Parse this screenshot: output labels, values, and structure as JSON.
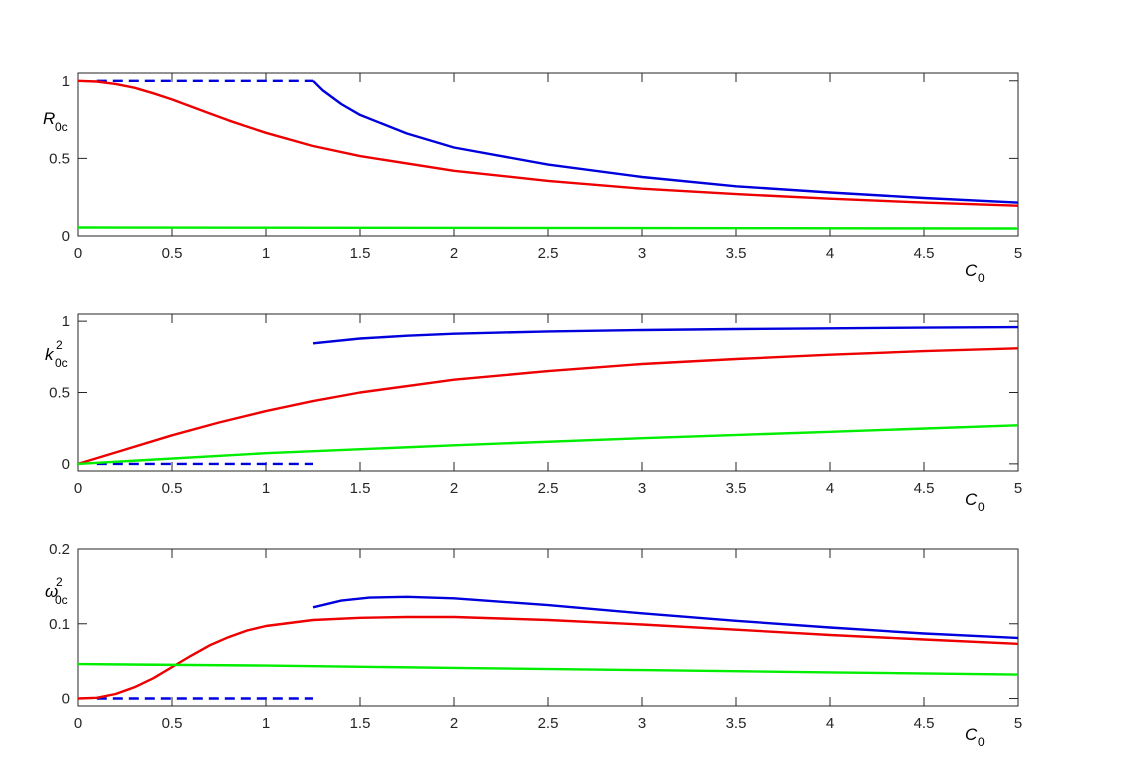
{
  "chart_data": [
    {
      "type": "line",
      "xlabel": "C",
      "xlabel_sub": "0",
      "ylabel": "R",
      "ylabel_sub": "0c",
      "ylabel_sup": "",
      "xlim": [
        0,
        5
      ],
      "ylim": [
        0,
        1.05
      ],
      "xticks": [
        0,
        0.5,
        1,
        1.5,
        2,
        2.5,
        3,
        3.5,
        4,
        4.5,
        5
      ],
      "xtick_labels": [
        "0",
        "0.5",
        "1",
        "1.5",
        "2",
        "2.5",
        "3",
        "3.5",
        "4",
        "4.5",
        "5"
      ],
      "yticks": [
        0,
        0.5,
        1
      ],
      "ytick_labels": [
        "0",
        "0.5",
        "1"
      ],
      "grid": false,
      "series": [
        {
          "color": "#0000dd",
          "style": "dashed",
          "x": [
            0.1,
            1.25
          ],
          "y": [
            1.0,
            1.0
          ]
        },
        {
          "color": "#0000dd",
          "style": "solid",
          "x": [
            1.25,
            1.3,
            1.4,
            1.5,
            1.75,
            2.0,
            2.5,
            3.0,
            3.5,
            4.0,
            4.5,
            5.0
          ],
          "y": [
            1.0,
            0.94,
            0.85,
            0.78,
            0.66,
            0.57,
            0.46,
            0.38,
            0.32,
            0.28,
            0.245,
            0.215
          ]
        },
        {
          "color": "#ee0000",
          "style": "solid",
          "x": [
            0,
            0.1,
            0.2,
            0.3,
            0.4,
            0.5,
            0.6,
            0.7,
            0.8,
            0.9,
            1.0,
            1.25,
            1.5,
            2.0,
            2.5,
            3.0,
            3.5,
            4.0,
            4.5,
            5.0
          ],
          "y": [
            1.0,
            0.995,
            0.98,
            0.955,
            0.92,
            0.88,
            0.835,
            0.79,
            0.745,
            0.705,
            0.665,
            0.58,
            0.515,
            0.42,
            0.355,
            0.305,
            0.27,
            0.24,
            0.215,
            0.195
          ]
        },
        {
          "color": "#00ee00",
          "style": "solid",
          "x": [
            0,
            5
          ],
          "y": [
            0.055,
            0.048
          ]
        }
      ]
    },
    {
      "type": "line",
      "xlabel": "C",
      "xlabel_sub": "0",
      "ylabel": "k",
      "ylabel_sub": "0c",
      "ylabel_sup": "2",
      "xlim": [
        0,
        5
      ],
      "ylim": [
        -0.05,
        1.05
      ],
      "xticks": [
        0,
        0.5,
        1,
        1.5,
        2,
        2.5,
        3,
        3.5,
        4,
        4.5,
        5
      ],
      "xtick_labels": [
        "0",
        "0.5",
        "1",
        "1.5",
        "2",
        "2.5",
        "3",
        "3.5",
        "4",
        "4.5",
        "5"
      ],
      "yticks": [
        0,
        0.5,
        1
      ],
      "ytick_labels": [
        "0",
        "0.5",
        "1"
      ],
      "grid": false,
      "series": [
        {
          "color": "#0000dd",
          "style": "dashed",
          "x": [
            0.1,
            1.25
          ],
          "y": [
            0.0,
            0.0
          ]
        },
        {
          "color": "#0000dd",
          "style": "solid",
          "x": [
            1.25,
            1.5,
            1.75,
            2.0,
            2.5,
            3.0,
            3.5,
            4.0,
            4.5,
            5.0
          ],
          "y": [
            0.845,
            0.878,
            0.898,
            0.912,
            0.928,
            0.938,
            0.945,
            0.95,
            0.955,
            0.958
          ]
        },
        {
          "color": "#ee0000",
          "style": "solid",
          "x": [
            0,
            0.25,
            0.5,
            0.75,
            1.0,
            1.25,
            1.5,
            2.0,
            2.5,
            3.0,
            3.5,
            4.0,
            4.5,
            5.0
          ],
          "y": [
            0.0,
            0.1,
            0.2,
            0.29,
            0.37,
            0.44,
            0.5,
            0.59,
            0.65,
            0.7,
            0.735,
            0.765,
            0.79,
            0.81
          ]
        },
        {
          "color": "#00ee00",
          "style": "solid",
          "x": [
            0,
            1.0,
            2.0,
            3.0,
            4.0,
            5.0
          ],
          "y": [
            0.0,
            0.075,
            0.13,
            0.18,
            0.225,
            0.27
          ]
        }
      ]
    },
    {
      "type": "line",
      "xlabel": "C",
      "xlabel_sub": "0",
      "ylabel": "ω",
      "ylabel_sub": "0c",
      "ylabel_sup": "2",
      "xlim": [
        0,
        5
      ],
      "ylim": [
        -0.01,
        0.2
      ],
      "xticks": [
        0,
        0.5,
        1,
        1.5,
        2,
        2.5,
        3,
        3.5,
        4,
        4.5,
        5
      ],
      "xtick_labels": [
        "0",
        "0.5",
        "1",
        "1.5",
        "2",
        "2.5",
        "3",
        "3.5",
        "4",
        "4.5",
        "5"
      ],
      "yticks": [
        0,
        0.1,
        0.2
      ],
      "ytick_labels": [
        "0",
        "0.1",
        "0.2"
      ],
      "grid": false,
      "series": [
        {
          "color": "#0000dd",
          "style": "dashed",
          "x": [
            0.1,
            1.25
          ],
          "y": [
            0.0,
            0.0
          ]
        },
        {
          "color": "#0000dd",
          "style": "solid",
          "x": [
            1.25,
            1.4,
            1.55,
            1.75,
            2.0,
            2.5,
            3.0,
            3.5,
            4.0,
            4.5,
            5.0
          ],
          "y": [
            0.122,
            0.131,
            0.135,
            0.136,
            0.134,
            0.125,
            0.114,
            0.104,
            0.095,
            0.087,
            0.081
          ]
        },
        {
          "color": "#ee0000",
          "style": "solid",
          "x": [
            0,
            0.1,
            0.2,
            0.3,
            0.4,
            0.5,
            0.6,
            0.7,
            0.8,
            0.9,
            1.0,
            1.25,
            1.5,
            1.75,
            2.0,
            2.5,
            3.0,
            3.5,
            4.0,
            4.5,
            5.0
          ],
          "y": [
            0.0,
            0.001,
            0.006,
            0.015,
            0.027,
            0.042,
            0.057,
            0.071,
            0.082,
            0.091,
            0.097,
            0.105,
            0.108,
            0.109,
            0.109,
            0.105,
            0.099,
            0.092,
            0.085,
            0.079,
            0.073
          ]
        },
        {
          "color": "#00ee00",
          "style": "solid",
          "x": [
            0,
            1.0,
            2.0,
            3.0,
            4.0,
            5.0
          ],
          "y": [
            0.046,
            0.044,
            0.041,
            0.038,
            0.035,
            0.032
          ]
        }
      ]
    }
  ]
}
